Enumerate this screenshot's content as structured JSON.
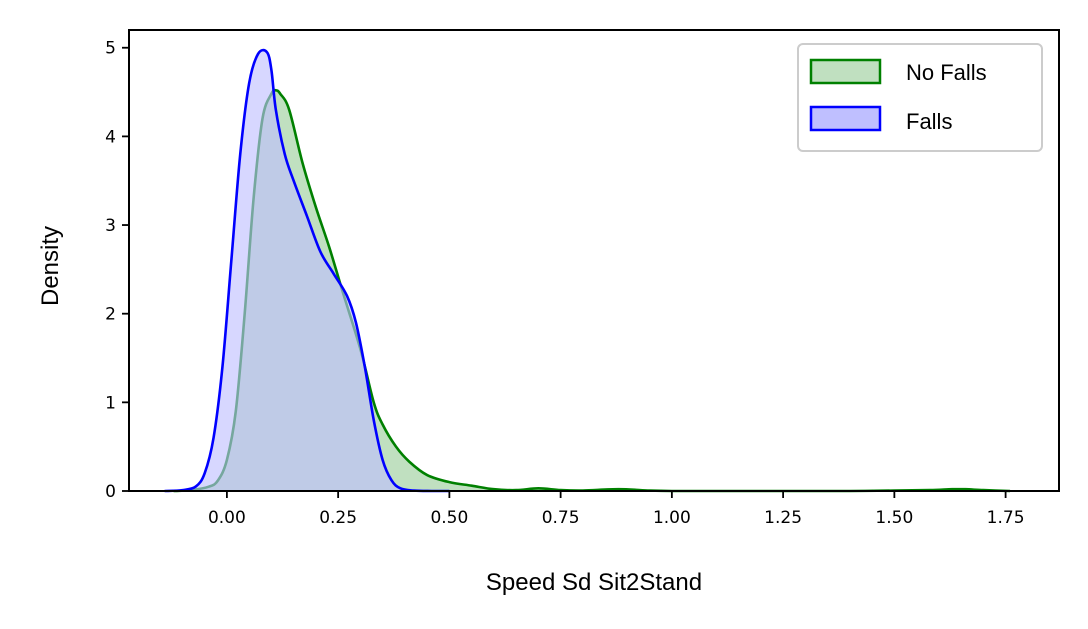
{
  "chart_data": {
    "type": "area",
    "title": "",
    "xlabel": "Speed Sd Sit2Stand",
    "ylabel": "Density",
    "xlim": [
      -0.22,
      1.87
    ],
    "ylim": [
      0,
      5.2
    ],
    "xticks": [
      0.0,
      0.25,
      0.5,
      0.75,
      1.0,
      1.25,
      1.5,
      1.75
    ],
    "xtick_labels": [
      "0.00",
      "0.25",
      "0.50",
      "0.75",
      "1.00",
      "1.25",
      "1.50",
      "1.75"
    ],
    "yticks": [
      0,
      1,
      2,
      3,
      4,
      5
    ],
    "ytick_labels": [
      "0",
      "1",
      "2",
      "3",
      "4",
      "5"
    ],
    "grid": false,
    "legend_position": "top-right",
    "series": [
      {
        "name": "No Falls",
        "color": "#008000",
        "fill": "#c0e0c0",
        "x": [
          -0.12,
          -0.08,
          -0.04,
          -0.02,
          0.0,
          0.02,
          0.04,
          0.06,
          0.08,
          0.1,
          0.11,
          0.12,
          0.14,
          0.17,
          0.2,
          0.23,
          0.26,
          0.3,
          0.33,
          0.35,
          0.38,
          0.41,
          0.45,
          0.5,
          0.55,
          0.6,
          0.65,
          0.7,
          0.75,
          0.8,
          0.88,
          0.95,
          1.0,
          1.1,
          1.2,
          1.3,
          1.4,
          1.5,
          1.58,
          1.63,
          1.66,
          1.7,
          1.76
        ],
        "y": [
          0.0,
          0.01,
          0.05,
          0.12,
          0.35,
          0.9,
          2.0,
          3.3,
          4.2,
          4.48,
          4.52,
          4.48,
          4.3,
          3.7,
          3.2,
          2.75,
          2.25,
          1.6,
          1.0,
          0.75,
          0.5,
          0.33,
          0.18,
          0.1,
          0.06,
          0.02,
          0.01,
          0.03,
          0.01,
          0.005,
          0.02,
          0.005,
          0.0,
          0.0,
          0.0,
          0.0,
          0.0,
          0.005,
          0.01,
          0.02,
          0.02,
          0.01,
          0.0
        ]
      },
      {
        "name": "Falls",
        "color": "#0000ff",
        "fill": "#bfbfff",
        "x": [
          -0.14,
          -0.1,
          -0.07,
          -0.05,
          -0.03,
          -0.01,
          0.01,
          0.03,
          0.05,
          0.07,
          0.09,
          0.1,
          0.11,
          0.13,
          0.15,
          0.18,
          0.21,
          0.24,
          0.27,
          0.29,
          0.31,
          0.33,
          0.35,
          0.37,
          0.39,
          0.42,
          0.46,
          0.5
        ],
        "y": [
          0.0,
          0.01,
          0.05,
          0.2,
          0.6,
          1.4,
          2.6,
          3.8,
          4.6,
          4.93,
          4.95,
          4.75,
          4.3,
          3.8,
          3.5,
          3.1,
          2.7,
          2.45,
          2.2,
          1.9,
          1.4,
          0.8,
          0.35,
          0.12,
          0.03,
          0.005,
          0.0,
          0.0
        ]
      }
    ]
  }
}
